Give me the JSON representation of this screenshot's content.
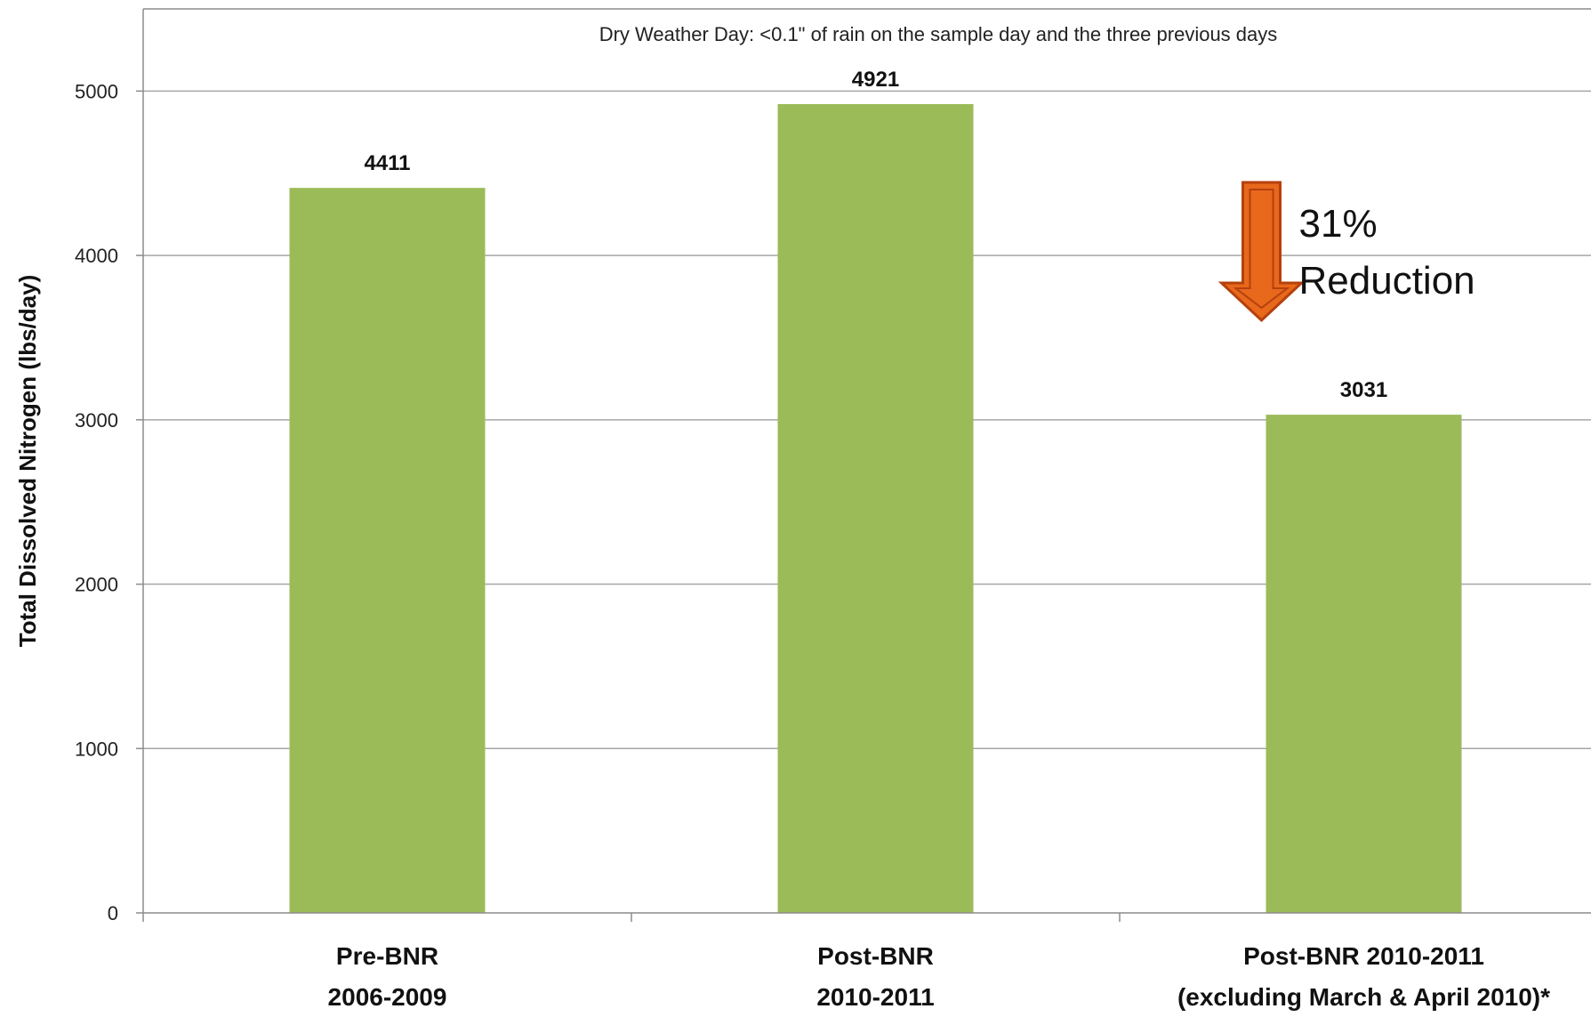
{
  "chart_data": {
    "type": "bar",
    "title": "",
    "subtitle": "Dry Weather Day: <0.1\" of rain on the sample day and the three previous days",
    "xlabel": "",
    "ylabel": "Total Dissolved Nitrogen (lbs/day)",
    "ylim": [
      0,
      5500
    ],
    "yticks": [
      0,
      1000,
      2000,
      3000,
      4000,
      5000
    ],
    "grid": true,
    "legend": "none",
    "categories": [
      [
        "Pre-BNR",
        "2006-2009"
      ],
      [
        "Post-BNR",
        "2010-2011"
      ],
      [
        "Post-BNR 2010-2011",
        "(excluding March & April 2010)*"
      ]
    ],
    "values": [
      4411,
      4921,
      3031
    ],
    "data_labels": [
      "4411",
      "4921",
      "3031"
    ],
    "bar_color": "#9BBB59",
    "annotation": {
      "lines": [
        "31%",
        "Reduction"
      ],
      "arrow_direction": "down",
      "arrow_color": "#E8681C",
      "arrow_edge_color": "#B5410D",
      "from_value": 4411,
      "to_value": 3031
    }
  }
}
